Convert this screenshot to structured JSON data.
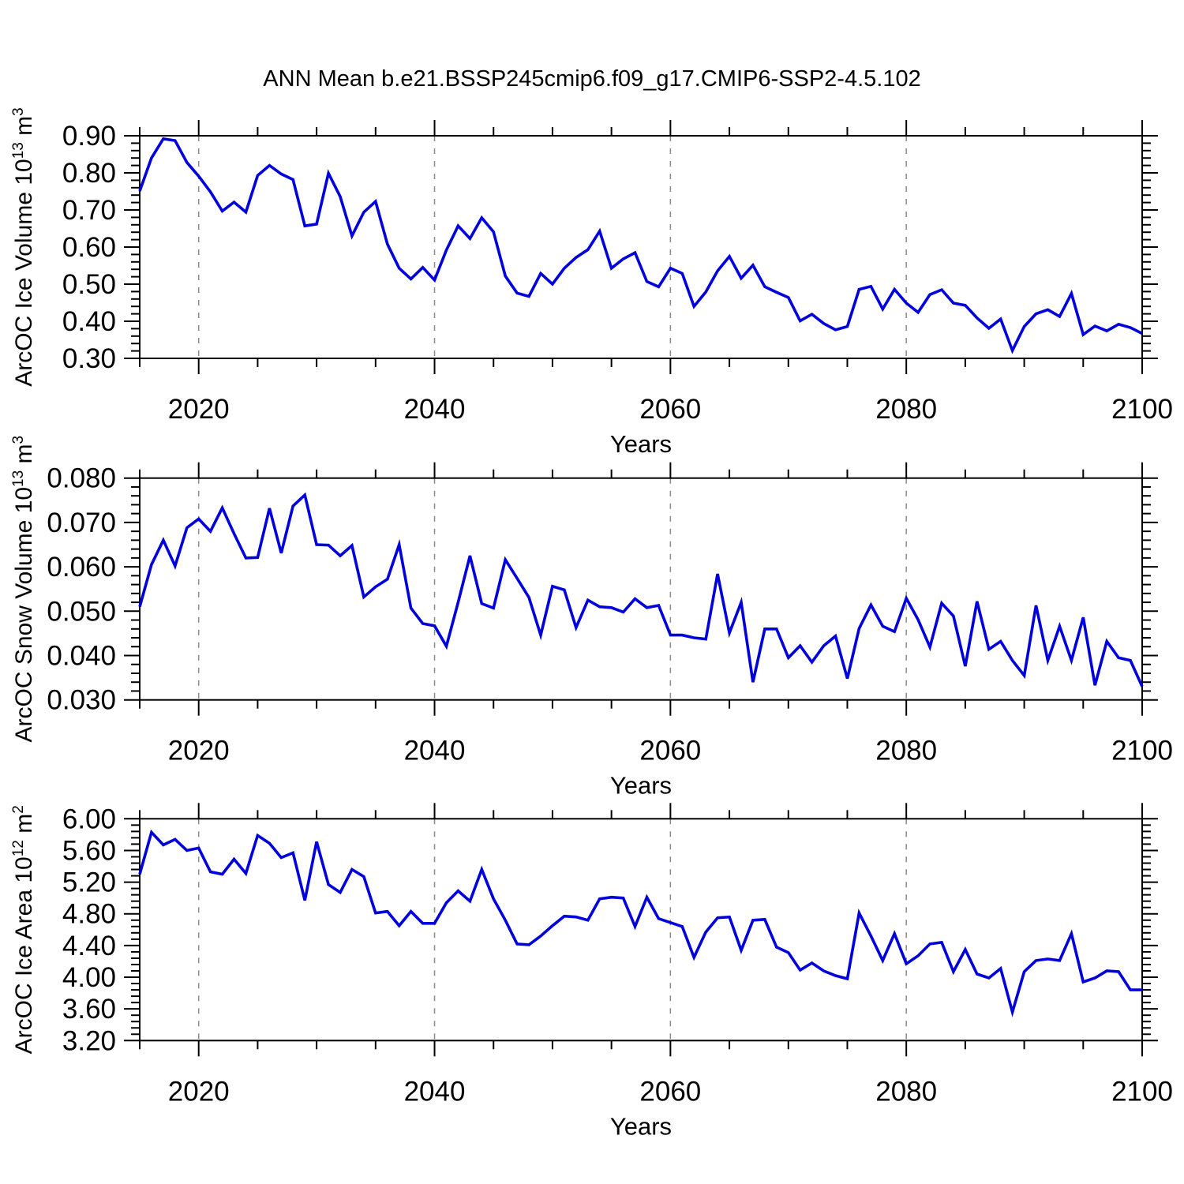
{
  "title": "ANN Mean b.e21.BSSP245cmip6.f09_g17.CMIP6-SSP2-4.5.102",
  "colors": {
    "line": "#0000dd",
    "grid": "#8a8a8a",
    "axis": "#000000"
  },
  "x_axis": {
    "label": "Years",
    "start": 2015,
    "end": 2100,
    "major_ticks": [
      2020,
      2040,
      2060,
      2080,
      2100
    ],
    "minor_step": 5,
    "gridlines": [
      2020,
      2040,
      2060,
      2080
    ]
  },
  "chart_data": [
    {
      "type": "line",
      "name": "ice-volume",
      "ylabel": "ArcOC Ice Volume 10^13 m^3",
      "ylabel_segments": [
        {
          "text": "ArcOC Ice Volume 10"
        },
        {
          "text": "13",
          "sup": true
        },
        {
          "text": " m"
        },
        {
          "text": "3",
          "sup": true
        }
      ],
      "xlabel": "Years",
      "x_start": 2015,
      "ylim": [
        0.3,
        0.9
      ],
      "ytick_step": 0.1,
      "ytick_decimals": 2,
      "yminor_divisions": 5,
      "values": [
        0.751,
        0.84,
        0.892,
        0.887,
        0.828,
        0.791,
        0.749,
        0.697,
        0.721,
        0.694,
        0.793,
        0.82,
        0.797,
        0.782,
        0.657,
        0.662,
        0.799,
        0.736,
        0.63,
        0.694,
        0.723,
        0.608,
        0.543,
        0.514,
        0.545,
        0.511,
        0.592,
        0.657,
        0.623,
        0.679,
        0.641,
        0.522,
        0.476,
        0.467,
        0.529,
        0.5,
        0.543,
        0.572,
        0.593,
        0.643,
        0.543,
        0.568,
        0.585,
        0.507,
        0.493,
        0.543,
        0.529,
        0.44,
        0.479,
        0.536,
        0.575,
        0.516,
        0.551,
        0.493,
        0.478,
        0.464,
        0.401,
        0.419,
        0.394,
        0.377,
        0.386,
        0.486,
        0.494,
        0.433,
        0.486,
        0.449,
        0.424,
        0.472,
        0.485,
        0.449,
        0.443,
        0.409,
        0.381,
        0.406,
        0.321,
        0.386,
        0.42,
        0.431,
        0.413,
        0.475,
        0.364,
        0.387,
        0.374,
        0.392,
        0.383,
        0.367
      ]
    },
    {
      "type": "line",
      "name": "snow-volume",
      "ylabel": "ArcOC Snow Volume 10^13 m^3",
      "ylabel_segments": [
        {
          "text": "ArcOC Snow Volume 10"
        },
        {
          "text": "13",
          "sup": true
        },
        {
          "text": " m"
        },
        {
          "text": "3",
          "sup": true
        }
      ],
      "xlabel": "Years",
      "x_start": 2015,
      "ylim": [
        0.03,
        0.08
      ],
      "ytick_step": 0.01,
      "ytick_decimals": 3,
      "yminor_divisions": 5,
      "values": [
        0.051,
        0.0605,
        0.066,
        0.0602,
        0.0688,
        0.0708,
        0.068,
        0.0733,
        0.0675,
        0.062,
        0.0621,
        0.0732,
        0.0631,
        0.0737,
        0.0762,
        0.065,
        0.0649,
        0.0625,
        0.0648,
        0.0532,
        0.0555,
        0.0572,
        0.065,
        0.0507,
        0.0472,
        0.0467,
        0.0421,
        0.052,
        0.0625,
        0.0517,
        0.0507,
        0.0616,
        0.0574,
        0.0531,
        0.0446,
        0.0556,
        0.0548,
        0.0463,
        0.0525,
        0.051,
        0.0508,
        0.0498,
        0.0528,
        0.0508,
        0.0513,
        0.0446,
        0.0446,
        0.044,
        0.0437,
        0.0584,
        0.0451,
        0.052,
        0.034,
        0.046,
        0.046,
        0.0395,
        0.0422,
        0.0385,
        0.0422,
        0.0444,
        0.0348,
        0.0461,
        0.0514,
        0.0466,
        0.0454,
        0.0529,
        0.0481,
        0.0419,
        0.0518,
        0.0489,
        0.0376,
        0.0522,
        0.0414,
        0.0432,
        0.0389,
        0.0355,
        0.0513,
        0.0389,
        0.0466,
        0.0389,
        0.0486,
        0.0333,
        0.0432,
        0.0395,
        0.0389,
        0.033
      ]
    },
    {
      "type": "line",
      "name": "ice-area",
      "ylabel": "ArcOC Ice Area 10^12 m^2",
      "ylabel_segments": [
        {
          "text": "ArcOC Ice Area 10"
        },
        {
          "text": "12",
          "sup": true
        },
        {
          "text": " m"
        },
        {
          "text": "2",
          "sup": true
        }
      ],
      "xlabel": "Years",
      "x_start": 2015,
      "ylim": [
        3.2,
        6.0
      ],
      "ytick_step": 0.4,
      "ytick_decimals": 2,
      "yminor_divisions": 5,
      "values": [
        5.3,
        5.83,
        5.67,
        5.74,
        5.6,
        5.63,
        5.33,
        5.3,
        5.49,
        5.31,
        5.79,
        5.69,
        5.51,
        5.57,
        4.97,
        5.71,
        5.17,
        5.07,
        5.36,
        5.27,
        4.81,
        4.83,
        4.65,
        4.83,
        4.68,
        4.68,
        4.94,
        5.09,
        4.96,
        5.36,
        4.99,
        4.72,
        4.42,
        4.41,
        4.52,
        4.65,
        4.77,
        4.76,
        4.72,
        4.99,
        5.01,
        5.0,
        4.64,
        5.01,
        4.74,
        4.69,
        4.64,
        4.25,
        4.57,
        4.75,
        4.76,
        4.34,
        4.72,
        4.73,
        4.38,
        4.31,
        4.09,
        4.18,
        4.08,
        4.02,
        3.98,
        4.81,
        4.52,
        4.21,
        4.55,
        4.17,
        4.27,
        4.42,
        4.44,
        4.07,
        4.35,
        4.04,
        3.99,
        4.11,
        3.56,
        4.07,
        4.21,
        4.23,
        4.21,
        4.55,
        3.94,
        3.99,
        4.08,
        4.07,
        3.84,
        3.84
      ]
    }
  ]
}
